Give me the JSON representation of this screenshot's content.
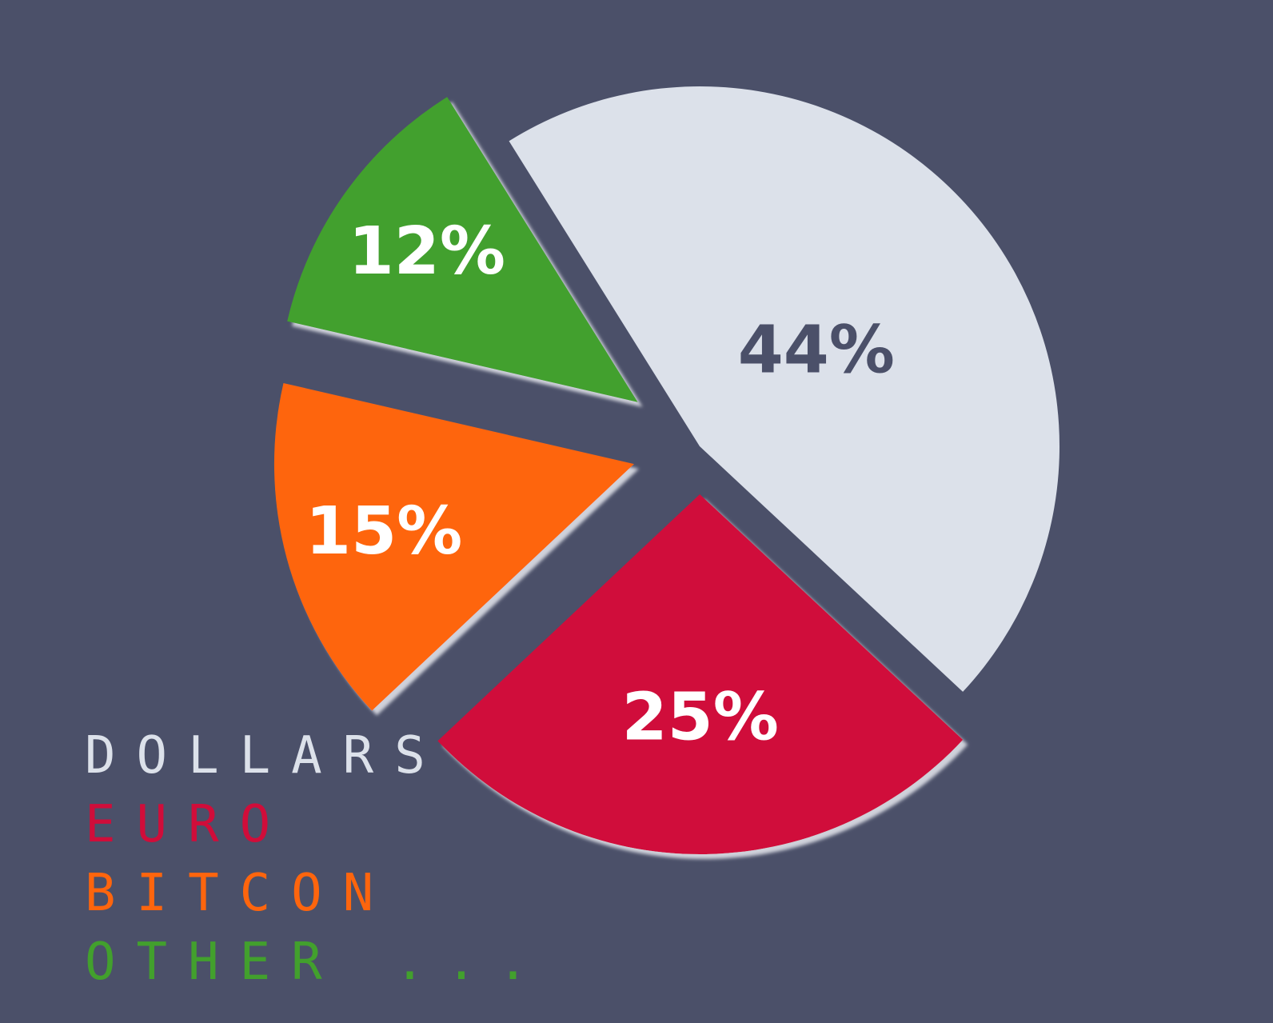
{
  "chart_data": {
    "type": "pie",
    "exploded": true,
    "categories": [
      "DOLLARS",
      "EURO",
      "BITCON",
      "OTHER ..."
    ],
    "values": [
      44,
      25,
      15,
      12
    ],
    "data_labels": [
      "44%",
      "25%",
      "15%",
      "12%"
    ],
    "colors": [
      "#dce1ea",
      "#d00d3a",
      "#fe650d",
      "#42a02d"
    ],
    "label_colors": [
      "#4b5069",
      "#ffffff",
      "#ffffff",
      "#ffffff"
    ],
    "legend": {
      "placement": "bottom-left",
      "items": [
        {
          "label": "DOLLARS",
          "color": "#dce1ea"
        },
        {
          "label": "EURO",
          "color": "#d00d3a"
        },
        {
          "label": "BITCON",
          "color": "#fe650d"
        },
        {
          "label": "OTHER ...",
          "color": "#42a02d"
        }
      ]
    },
    "background": "#4b5069"
  }
}
